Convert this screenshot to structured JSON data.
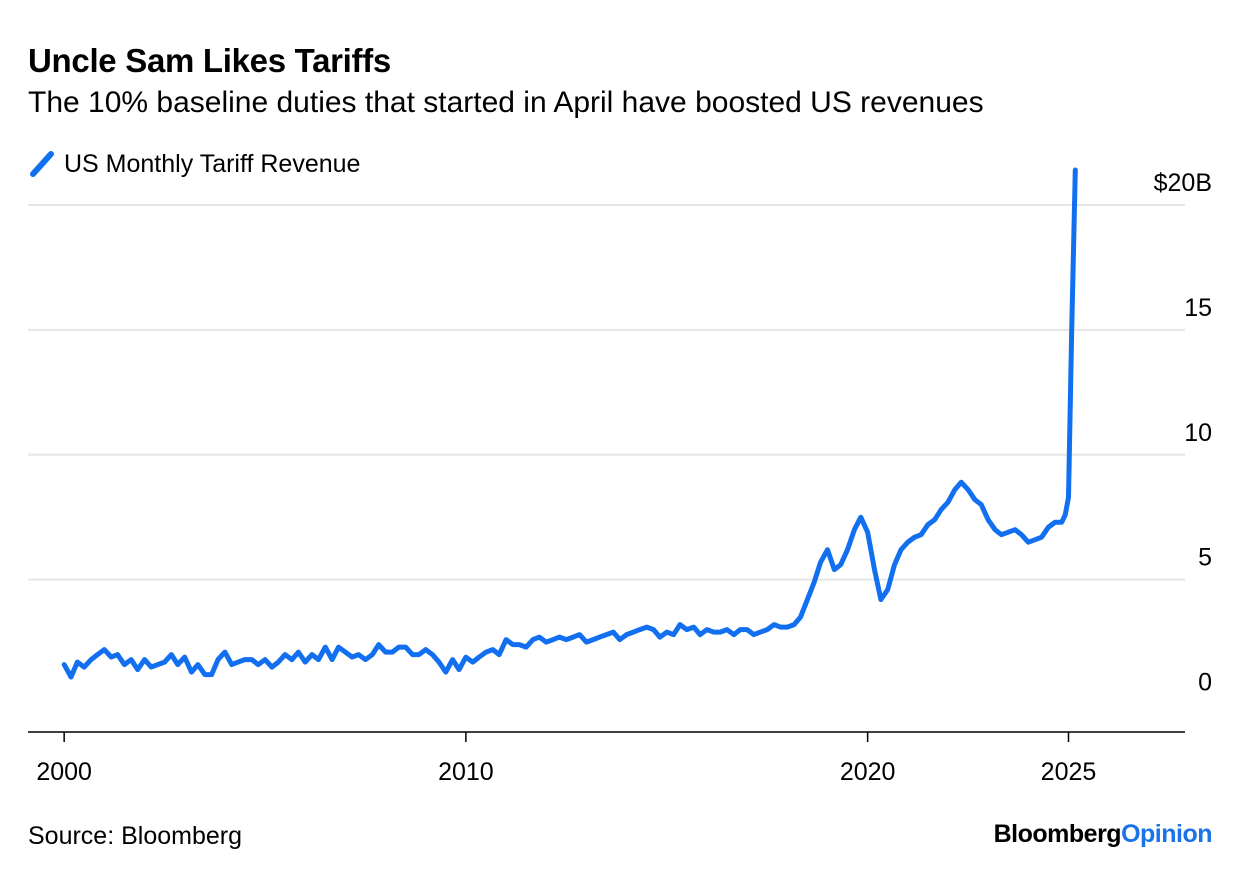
{
  "header": {
    "title": "Uncle Sam Likes Tariffs",
    "subtitle": "The 10% baseline duties that started in April have boosted US revenues"
  },
  "footer": {
    "source": "Source: Bloomberg",
    "brand_main": "Bloomberg",
    "brand_accent": "Opinion"
  },
  "colors": {
    "series": "#1270f0",
    "grid": "#e6e6e6",
    "axis": "#000000",
    "accent": "#1a73e8"
  },
  "chart_data": {
    "type": "line",
    "title": "Uncle Sam Likes Tariffs",
    "subtitle": "The 10% baseline duties that started in April have boosted US revenues",
    "xlabel": "",
    "ylabel": "",
    "xlim": [
      1999.1,
      2027.9
    ],
    "ylim": [
      -1.1,
      21
    ],
    "x_ticks": [
      2000,
      2010,
      2020,
      2025
    ],
    "x_tick_labels": [
      "2000",
      "2010",
      "2020",
      "2025"
    ],
    "y_ticks": [
      0,
      5,
      10,
      15,
      20
    ],
    "y_tick_labels": [
      "0",
      "5",
      "10",
      "15",
      "$20B"
    ],
    "grid": "horizontal",
    "legend_position": "top-left",
    "series": [
      {
        "name": "US Monthly Tariff Revenue",
        "points": [
          [
            2000.0,
            1.6
          ],
          [
            2000.17,
            1.1
          ],
          [
            2000.33,
            1.7
          ],
          [
            2000.5,
            1.5
          ],
          [
            2000.67,
            1.8
          ],
          [
            2000.83,
            2.0
          ],
          [
            2001.0,
            2.2
          ],
          [
            2001.17,
            1.9
          ],
          [
            2001.33,
            2.0
          ],
          [
            2001.5,
            1.6
          ],
          [
            2001.67,
            1.8
          ],
          [
            2001.83,
            1.4
          ],
          [
            2002.0,
            1.8
          ],
          [
            2002.17,
            1.5
          ],
          [
            2002.33,
            1.6
          ],
          [
            2002.5,
            1.7
          ],
          [
            2002.67,
            2.0
          ],
          [
            2002.83,
            1.6
          ],
          [
            2003.0,
            1.9
          ],
          [
            2003.17,
            1.3
          ],
          [
            2003.33,
            1.6
          ],
          [
            2003.5,
            1.2
          ],
          [
            2003.67,
            1.2
          ],
          [
            2003.83,
            1.8
          ],
          [
            2004.0,
            2.1
          ],
          [
            2004.17,
            1.6
          ],
          [
            2004.33,
            1.7
          ],
          [
            2004.5,
            1.8
          ],
          [
            2004.67,
            1.8
          ],
          [
            2004.83,
            1.6
          ],
          [
            2005.0,
            1.8
          ],
          [
            2005.17,
            1.5
          ],
          [
            2005.33,
            1.7
          ],
          [
            2005.5,
            2.0
          ],
          [
            2005.67,
            1.8
          ],
          [
            2005.83,
            2.1
          ],
          [
            2006.0,
            1.7
          ],
          [
            2006.17,
            2.0
          ],
          [
            2006.33,
            1.8
          ],
          [
            2006.5,
            2.3
          ],
          [
            2006.67,
            1.8
          ],
          [
            2006.83,
            2.3
          ],
          [
            2007.0,
            2.1
          ],
          [
            2007.17,
            1.9
          ],
          [
            2007.33,
            2.0
          ],
          [
            2007.5,
            1.8
          ],
          [
            2007.67,
            2.0
          ],
          [
            2007.83,
            2.4
          ],
          [
            2008.0,
            2.1
          ],
          [
            2008.17,
            2.1
          ],
          [
            2008.33,
            2.3
          ],
          [
            2008.5,
            2.3
          ],
          [
            2008.67,
            2.0
          ],
          [
            2008.83,
            2.0
          ],
          [
            2009.0,
            2.2
          ],
          [
            2009.17,
            2.0
          ],
          [
            2009.33,
            1.7
          ],
          [
            2009.5,
            1.3
          ],
          [
            2009.67,
            1.8
          ],
          [
            2009.83,
            1.4
          ],
          [
            2010.0,
            1.9
          ],
          [
            2010.17,
            1.7
          ],
          [
            2010.33,
            1.9
          ],
          [
            2010.5,
            2.1
          ],
          [
            2010.67,
            2.2
          ],
          [
            2010.83,
            2.0
          ],
          [
            2011.0,
            2.6
          ],
          [
            2011.17,
            2.4
          ],
          [
            2011.33,
            2.4
          ],
          [
            2011.5,
            2.3
          ],
          [
            2011.67,
            2.6
          ],
          [
            2011.83,
            2.7
          ],
          [
            2012.0,
            2.5
          ],
          [
            2012.17,
            2.6
          ],
          [
            2012.33,
            2.7
          ],
          [
            2012.5,
            2.6
          ],
          [
            2012.67,
            2.7
          ],
          [
            2012.83,
            2.8
          ],
          [
            2013.0,
            2.5
          ],
          [
            2013.17,
            2.6
          ],
          [
            2013.33,
            2.7
          ],
          [
            2013.5,
            2.8
          ],
          [
            2013.67,
            2.9
          ],
          [
            2013.83,
            2.6
          ],
          [
            2014.0,
            2.8
          ],
          [
            2014.17,
            2.9
          ],
          [
            2014.33,
            3.0
          ],
          [
            2014.5,
            3.1
          ],
          [
            2014.67,
            3.0
          ],
          [
            2014.83,
            2.7
          ],
          [
            2015.0,
            2.9
          ],
          [
            2015.17,
            2.8
          ],
          [
            2015.33,
            3.2
          ],
          [
            2015.5,
            3.0
          ],
          [
            2015.67,
            3.1
          ],
          [
            2015.83,
            2.8
          ],
          [
            2016.0,
            3.0
          ],
          [
            2016.17,
            2.9
          ],
          [
            2016.33,
            2.9
          ],
          [
            2016.5,
            3.0
          ],
          [
            2016.67,
            2.8
          ],
          [
            2016.83,
            3.0
          ],
          [
            2017.0,
            3.0
          ],
          [
            2017.17,
            2.8
          ],
          [
            2017.33,
            2.9
          ],
          [
            2017.5,
            3.0
          ],
          [
            2017.67,
            3.2
          ],
          [
            2017.83,
            3.1
          ],
          [
            2018.0,
            3.1
          ],
          [
            2018.17,
            3.2
          ],
          [
            2018.33,
            3.5
          ],
          [
            2018.5,
            4.2
          ],
          [
            2018.67,
            4.9
          ],
          [
            2018.83,
            5.7
          ],
          [
            2019.0,
            6.2
          ],
          [
            2019.17,
            5.4
          ],
          [
            2019.33,
            5.6
          ],
          [
            2019.5,
            6.2
          ],
          [
            2019.67,
            7.0
          ],
          [
            2019.83,
            7.5
          ],
          [
            2020.0,
            6.9
          ],
          [
            2020.17,
            5.4
          ],
          [
            2020.33,
            4.2
          ],
          [
            2020.5,
            4.6
          ],
          [
            2020.67,
            5.6
          ],
          [
            2020.83,
            6.2
          ],
          [
            2021.0,
            6.5
          ],
          [
            2021.17,
            6.7
          ],
          [
            2021.33,
            6.8
          ],
          [
            2021.5,
            7.2
          ],
          [
            2021.67,
            7.4
          ],
          [
            2021.83,
            7.8
          ],
          [
            2022.0,
            8.1
          ],
          [
            2022.17,
            8.6
          ],
          [
            2022.33,
            8.9
          ],
          [
            2022.5,
            8.6
          ],
          [
            2022.67,
            8.2
          ],
          [
            2022.83,
            8.0
          ],
          [
            2023.0,
            7.4
          ],
          [
            2023.17,
            7.0
          ],
          [
            2023.33,
            6.8
          ],
          [
            2023.5,
            6.9
          ],
          [
            2023.67,
            7.0
          ],
          [
            2023.83,
            6.8
          ],
          [
            2024.0,
            6.5
          ],
          [
            2024.17,
            6.6
          ],
          [
            2024.33,
            6.7
          ],
          [
            2024.5,
            7.1
          ],
          [
            2024.67,
            7.3
          ],
          [
            2024.83,
            7.3
          ],
          [
            2024.92,
            7.6
          ],
          [
            2025.0,
            8.3
          ],
          [
            2025.08,
            15.0
          ],
          [
            2025.17,
            21.4
          ]
        ]
      }
    ]
  }
}
